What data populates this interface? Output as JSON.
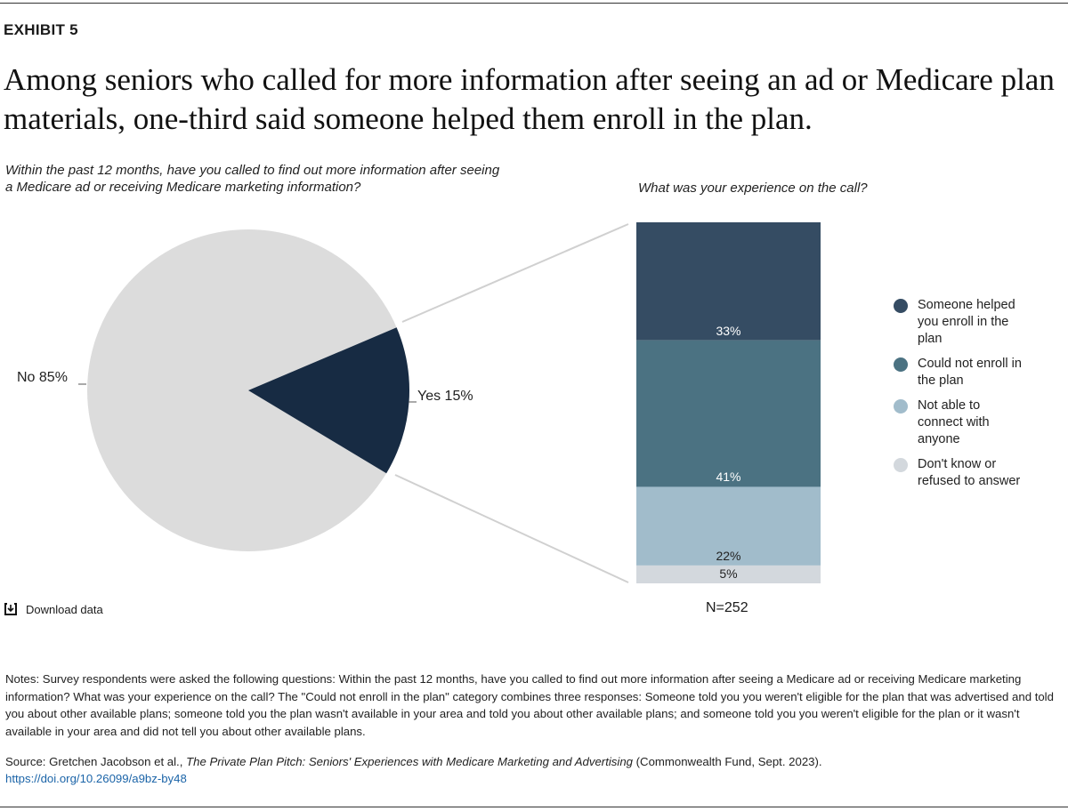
{
  "exhibit": "EXHIBIT 5",
  "title": "Among seniors who called for more information after seeing an ad or Medicare plan materials, one-third said someone helped them enroll in the plan.",
  "download_label": "Download data",
  "notes": "Notes: Survey respondents were asked the following questions: Within the past 12 months, have you called to find out more information after seeing a Medicare ad or receiving Medicare marketing information? What was your experience on the call? The \"Could not enroll in the plan\" category combines three responses: Someone told you you weren't eligible for the plan that was advertised and told you about other available plans; someone told you the plan wasn't available in your area and told you about other available plans; and someone told you you weren't eligible for the plan or it wasn't available in your area and did not tell you about other available plans.",
  "source": {
    "prefix": "Source: Gretchen Jacobson et al., ",
    "title": "The Private Plan Pitch: Seniors' Experiences with Medicare Marketing and Advertising",
    "suffix": " (Commonwealth Fund, Sept. 2023).",
    "doi": "https://doi.org/10.26099/a9bz-by48"
  },
  "chart_data": [
    {
      "type": "pie",
      "title": "Within the past 12 months, have you called to find out more information after seeing a Medicare ad or receiving Medicare marketing information?",
      "slices": [
        {
          "label": "No",
          "value": 85,
          "display": "No 85%",
          "color": "#dcdcdc"
        },
        {
          "label": "Yes",
          "value": 15,
          "display": "Yes 15%",
          "color": "#172b43"
        }
      ]
    },
    {
      "type": "bar",
      "stacked": true,
      "title": "What was your experience on the call?",
      "note": "N=252",
      "series": [
        {
          "name": "Someone helped you enroll in the plan",
          "value": 33,
          "display": "33%",
          "color": "#354c63"
        },
        {
          "name": "Could not enroll in the plan",
          "value": 41,
          "display": "41%",
          "color": "#4b7282"
        },
        {
          "name": "Not able to connect with anyone",
          "value": 22,
          "display": "22%",
          "color": "#a1bccb"
        },
        {
          "name": "Don't know or refused to answer",
          "value": 5,
          "display": "5%",
          "color": "#d3d8dd"
        }
      ],
      "legend_position": "right"
    }
  ]
}
